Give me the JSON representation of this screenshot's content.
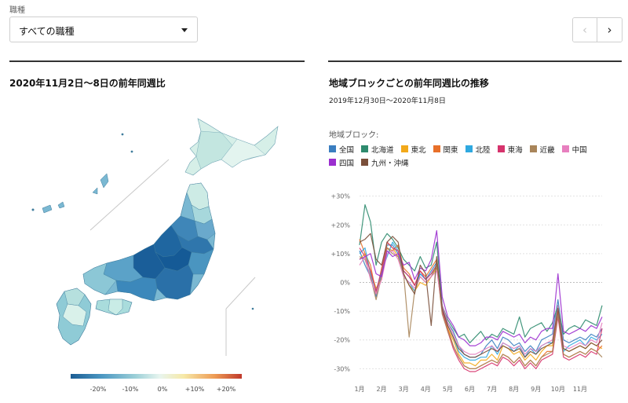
{
  "filter": {
    "label": "職種",
    "selected": "すべての職種"
  },
  "nav": {
    "prev_icon": "chevron-left-icon",
    "next_icon": "chevron-right-icon"
  },
  "map_panel": {
    "title": "2020年11月2日〜8日の前年同週比",
    "scale_ticks": [
      "-20%",
      "-10%",
      "0%",
      "+10%",
      "+20%"
    ],
    "scale_colors": [
      "#1b5d94",
      "#4b97c2",
      "#9dd0d8",
      "#e8f5ef",
      "#f6e9a8",
      "#ee9c55",
      "#c0392b"
    ]
  },
  "chart_panel": {
    "title": "地域ブロックごとの前年同週比の推移",
    "subtitle": "2019年12月30日〜2020年11月8日",
    "legend_title": "地域ブロック:"
  },
  "chart_data": {
    "type": "line",
    "title": "地域ブロックごとの前年同週比の推移",
    "subtitle": "2019年12月30日〜2020年11月8日",
    "xlabel": "",
    "ylabel": "",
    "x_ticks": [
      "1月",
      "2月",
      "3月",
      "4月",
      "5月",
      "6月",
      "7月",
      "8月",
      "9月",
      "10月",
      "11月"
    ],
    "y_ticks": [
      "+30%",
      "+20%",
      "+10%",
      "0%",
      "-10%",
      "-20%",
      "-30%"
    ],
    "y_tick_values": [
      30,
      20,
      10,
      0,
      -10,
      -20,
      -30
    ],
    "ylim": [
      -34,
      31
    ],
    "xlim": [
      0,
      44
    ],
    "grid": "horizontal dotted",
    "legend_position": "top",
    "series": [
      {
        "name": "全国",
        "color": "#3a7ec0",
        "values": [
          11,
          6,
          2,
          -5,
          3,
          13,
          13,
          10,
          4,
          2,
          -1,
          3,
          1,
          4,
          7,
          -8,
          -14,
          -17,
          -22,
          -25,
          -26,
          -26,
          -25,
          -22,
          -20,
          -23,
          -19,
          -20,
          -22,
          -21,
          -24,
          -22,
          -24,
          -20,
          -19,
          -18,
          -6,
          -20,
          -21,
          -20,
          -19,
          -20,
          -18,
          -19,
          -16
        ]
      },
      {
        "name": "北海道",
        "color": "#2e8b6e",
        "values": [
          13,
          27,
          21,
          6,
          14,
          17,
          15,
          12,
          8,
          6,
          4,
          9,
          5,
          6,
          14,
          -8,
          -13,
          -16,
          -19,
          -18,
          -21,
          -19,
          -17,
          -20,
          -18,
          -19,
          -16,
          -17,
          -18,
          -12,
          -19,
          -16,
          -15,
          -14,
          -17,
          -14,
          -8,
          -18,
          -16,
          -15,
          -16,
          -13,
          -14,
          -15,
          -8
        ]
      },
      {
        "name": "東北",
        "color": "#f2a91a",
        "values": [
          8,
          10,
          4,
          -2,
          1,
          14,
          12,
          9,
          3,
          -1,
          -3,
          0,
          -1,
          2,
          5,
          -10,
          -16,
          -20,
          -25,
          -28,
          -28,
          -29,
          -27,
          -27,
          -25,
          -27,
          -22,
          -23,
          -25,
          -24,
          -27,
          -25,
          -27,
          -24,
          -22,
          -22,
          -10,
          -23,
          -24,
          -23,
          -22,
          -23,
          -21,
          -22,
          -23
        ]
      },
      {
        "name": "関東",
        "color": "#e8702a",
        "values": [
          15,
          10,
          6,
          -4,
          5,
          12,
          11,
          13,
          5,
          3,
          -1,
          4,
          2,
          5,
          8,
          -9,
          -16,
          -22,
          -26,
          -29,
          -30,
          -30,
          -29,
          -28,
          -27,
          -28,
          -25,
          -26,
          -28,
          -26,
          -29,
          -27,
          -29,
          -26,
          -24,
          -24,
          -10,
          -25,
          -26,
          -25,
          -24,
          -25,
          -23,
          -24,
          -22
        ]
      },
      {
        "name": "北陸",
        "color": "#2fa9e0",
        "values": [
          10,
          12,
          3,
          -3,
          4,
          9,
          14,
          11,
          2,
          0,
          -3,
          3,
          1,
          3,
          6,
          -9,
          -15,
          -19,
          -24,
          -26,
          -27,
          -27,
          -26,
          -26,
          -22,
          -25,
          -21,
          -22,
          -24,
          -22,
          -26,
          -23,
          -25,
          -22,
          -21,
          -21,
          -8,
          -24,
          -22,
          -21,
          -20,
          -22,
          -19,
          -20,
          -18
        ]
      },
      {
        "name": "東海",
        "color": "#d6336c",
        "values": [
          12,
          9,
          4,
          -3,
          4,
          14,
          12,
          11,
          4,
          2,
          -1,
          4,
          1,
          3,
          6,
          -10,
          -17,
          -23,
          -27,
          -30,
          -31,
          -31,
          -30,
          -29,
          -28,
          -29,
          -26,
          -27,
          -29,
          -27,
          -30,
          -28,
          -30,
          -27,
          -26,
          -25,
          -12,
          -26,
          -27,
          -26,
          -25,
          -26,
          -24,
          -25,
          -16
        ]
      },
      {
        "name": "近畿",
        "color": "#a9855a",
        "values": [
          9,
          8,
          2,
          -6,
          2,
          12,
          10,
          9,
          3,
          -19,
          -3,
          2,
          0,
          2,
          6,
          -11,
          -17,
          -22,
          -26,
          -29,
          -30,
          -30,
          -29,
          -28,
          -27,
          -28,
          -25,
          -26,
          -28,
          -26,
          -29,
          -27,
          -29,
          -26,
          -25,
          -24,
          -11,
          -25,
          -26,
          -25,
          -24,
          -25,
          -23,
          -24,
          -26
        ]
      },
      {
        "name": "中国",
        "color": "#e77fbf",
        "values": [
          6,
          9,
          1,
          -4,
          1,
          10,
          11,
          8,
          2,
          0,
          -2,
          2,
          0,
          2,
          4,
          -8,
          -14,
          -18,
          -22,
          -24,
          -25,
          -25,
          -24,
          -23,
          -22,
          -24,
          -21,
          -22,
          -23,
          -22,
          -25,
          -23,
          -24,
          -22,
          -21,
          -20,
          -8,
          -22,
          -23,
          -22,
          -21,
          -22,
          -20,
          -21,
          -14
        ]
      },
      {
        "name": "四国",
        "color": "#9b2ecf",
        "values": [
          8,
          9,
          10,
          3,
          2,
          11,
          9,
          10,
          6,
          7,
          1,
          5,
          4,
          8,
          18,
          -5,
          -12,
          -15,
          -19,
          -20,
          -22,
          -22,
          -21,
          -19,
          -19,
          -20,
          -17,
          -18,
          -19,
          -18,
          -21,
          -19,
          -20,
          -17,
          -16,
          -16,
          3,
          -17,
          -18,
          -17,
          -16,
          -17,
          -15,
          -16,
          -12
        ]
      },
      {
        "name": "九州・沖縄",
        "color": "#7a4f3a",
        "values": [
          14,
          15,
          17,
          8,
          6,
          14,
          16,
          14,
          3,
          -1,
          -4,
          6,
          3,
          -15,
          9,
          -9,
          -15,
          -19,
          -23,
          -25,
          -26,
          -26,
          -25,
          -24,
          -23,
          -24,
          -22,
          -23,
          -24,
          -23,
          -26,
          -24,
          -25,
          -23,
          -22,
          -21,
          -9,
          -23,
          -24,
          -23,
          -22,
          -23,
          -21,
          -22,
          -20
        ]
      }
    ]
  }
}
